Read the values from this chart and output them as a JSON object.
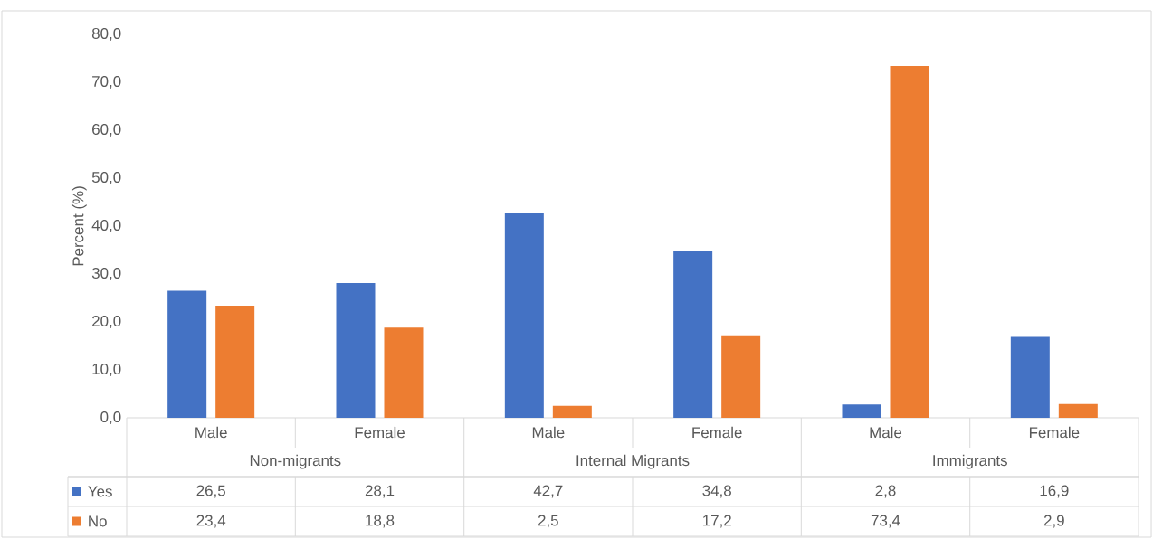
{
  "chart_data": {
    "type": "bar",
    "ylabel": "Percent (%)",
    "categories": [
      "Male",
      "Female",
      "Male",
      "Female",
      "Male",
      "Female"
    ],
    "annotations": [
      "Non-migrants",
      "Internal Migrants",
      "Immigrants"
    ],
    "series": [
      {
        "name": "Yes",
        "color": "#4472c4",
        "values": [
          26.5,
          28.1,
          42.7,
          34.8,
          2.8,
          16.9
        ],
        "value_labels": [
          "26,5",
          "28,1",
          "42,7",
          "34,8",
          "2,8",
          "16,9"
        ]
      },
      {
        "name": "No",
        "color": "#ed7d31",
        "values": [
          23.4,
          18.8,
          2.5,
          17.2,
          73.4,
          2.9
        ],
        "value_labels": [
          "23,4",
          "18,8",
          "2,5",
          "17,2",
          "73,4",
          "2,9"
        ]
      }
    ],
    "ylim": [
      0,
      80
    ],
    "yticks": [
      {
        "value": 0,
        "label": "0,0"
      },
      {
        "value": 10,
        "label": "10,0"
      },
      {
        "value": 20,
        "label": "20,0"
      },
      {
        "value": 30,
        "label": "30,0"
      },
      {
        "value": 40,
        "label": "40,0"
      },
      {
        "value": 50,
        "label": "50,0"
      },
      {
        "value": 60,
        "label": "60,0"
      },
      {
        "value": 70,
        "label": "70,0"
      },
      {
        "value": 80,
        "label": "80,0"
      }
    ],
    "legend": "bottom",
    "grid": false
  }
}
